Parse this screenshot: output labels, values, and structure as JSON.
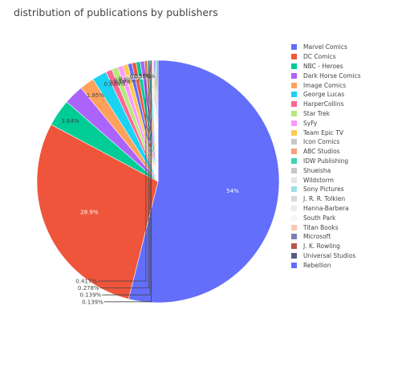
{
  "chart_data": {
    "type": "pie",
    "title": "distribution of publications by publishers",
    "legend_position": "right",
    "slices": [
      {
        "label": "Marvel Comics",
        "value": 54,
        "color": "#636efa",
        "text": "54%"
      },
      {
        "label": "DC Comics",
        "value": 28.9,
        "color": "#ef553b",
        "text": "28.9%"
      },
      {
        "label": "NBC - Heroes",
        "value": 3.64,
        "color": "#00cc96",
        "text": "3.64%"
      },
      {
        "label": "Dark Horse Comics",
        "value": 2.62,
        "color": "#ab63fa",
        "text": ""
      },
      {
        "label": "Image Comics",
        "value": 1.95,
        "color": "#ffa15a",
        "text": "1.95%"
      },
      {
        "label": "George Lucas",
        "value": 1.95,
        "color": "#19d3f3",
        "text": ""
      },
      {
        "label": "HarperCollins",
        "value": 0.834,
        "color": "#ff6692",
        "text": "0.834%"
      },
      {
        "label": "Star Trek",
        "value": 0.834,
        "color": "#b6e880",
        "text": "0.834%"
      },
      {
        "label": "SyFy",
        "value": 0.695,
        "color": "#ff97ff",
        "text": "0.695%"
      },
      {
        "label": "Team Epic TV",
        "value": 0.695,
        "color": "#fecb52",
        "text": "0.695%"
      },
      {
        "label": "Icon Comics",
        "value": 0.556,
        "color": "#636efa",
        "text": "0.556%"
      },
      {
        "label": "ABC Studios",
        "value": 0.556,
        "color": "#ef553b",
        "text": "0.556%"
      },
      {
        "label": "IDW Publishing",
        "value": 0.556,
        "color": "#00cc96",
        "text": "0.556%"
      },
      {
        "label": "Shueisha",
        "value": 0.556,
        "color": "#ab63fa",
        "text": "0.556%"
      },
      {
        "label": "Wildstorm",
        "value": 0.417,
        "color": "#ffa15a",
        "text": "0.417%"
      },
      {
        "label": "Sony Pictures",
        "value": 0.278,
        "color": "#19d3f3",
        "text": "0.278%"
      },
      {
        "label": "J. R. R. Tolkien",
        "value": 0.139,
        "color": "#ff6692",
        "text": "0.139%"
      },
      {
        "label": "Hanna-Barbera",
        "value": 0.139,
        "color": "#b6e880",
        "text": "0.139%"
      },
      {
        "label": "South Park",
        "value": 0.139,
        "color": "#ff97ff",
        "text": ""
      },
      {
        "label": "Titan Books",
        "value": 0.139,
        "color": "#fecb52",
        "text": ""
      },
      {
        "label": "Microsoft",
        "value": 0.139,
        "color": "#636efa",
        "text": ""
      },
      {
        "label": "J. K. Rowling",
        "value": 0.139,
        "color": "#ef553b",
        "text": ""
      },
      {
        "label": "Universal Studios",
        "value": 0.139,
        "color": "#00cc96",
        "text": ""
      },
      {
        "label": "Rebellion",
        "value": 0.139,
        "color": "#ab63fa",
        "text": ""
      }
    ],
    "legend_colors": [
      "#636efa",
      "#ef553b",
      "#00cc96",
      "#ab63fa",
      "#ffa15a",
      "#19d3f3",
      "#ff6692",
      "#b6e880",
      "#ff97ff",
      "#fecb52",
      "#c7c7c7",
      "#f2a07b",
      "#40d3b0",
      "#c8c8c8",
      "#e5e5e5",
      "#9ee0e6",
      "#d8d8d8",
      "#ebebeb",
      "#f5f5f5",
      "#f9c9b0",
      "#7a7fb5",
      "#b5564b",
      "#565c7d",
      "#636efa"
    ]
  }
}
